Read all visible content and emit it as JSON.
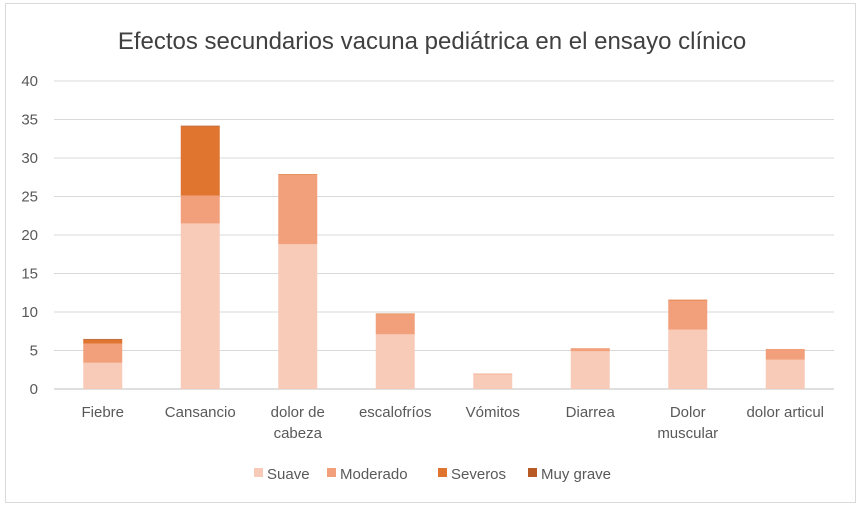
{
  "chart_data": {
    "type": "bar",
    "stacked": true,
    "title": "Efectos secundarios vacuna pediátrica en el ensayo clínico",
    "xlabel": "",
    "ylabel": "",
    "ylim": [
      0,
      40
    ],
    "yticks": [
      0,
      5,
      10,
      15,
      20,
      25,
      30,
      35,
      40
    ],
    "grid": true,
    "legend_position": "bottom",
    "categories": [
      [
        "Fiebre"
      ],
      [
        "Cansancio"
      ],
      [
        "dolor de",
        "cabeza"
      ],
      [
        "escalofríos"
      ],
      [
        "Vómitos"
      ],
      [
        "Diarrea"
      ],
      [
        "Dolor",
        "muscular"
      ],
      [
        "dolor articul"
      ]
    ],
    "series": [
      {
        "name": "Suave",
        "color": "#F8CBB8",
        "values": [
          3.4,
          21.5,
          18.8,
          7.1,
          1.9,
          4.9,
          7.7,
          3.8
        ]
      },
      {
        "name": "Moderado",
        "color": "#F1A07B",
        "values": [
          2.5,
          3.6,
          9.0,
          2.6,
          0.1,
          0.4,
          3.8,
          1.4
        ]
      },
      {
        "name": "Severos",
        "color": "#E07530",
        "values": [
          0.5,
          9.0,
          0.1,
          0.1,
          0.0,
          0.0,
          0.1,
          0.0
        ]
      },
      {
        "name": "Muy grave",
        "color": "#B85A24",
        "values": [
          0.1,
          0.1,
          0.0,
          0.0,
          0.0,
          0.0,
          0.0,
          0.0
        ]
      }
    ]
  }
}
